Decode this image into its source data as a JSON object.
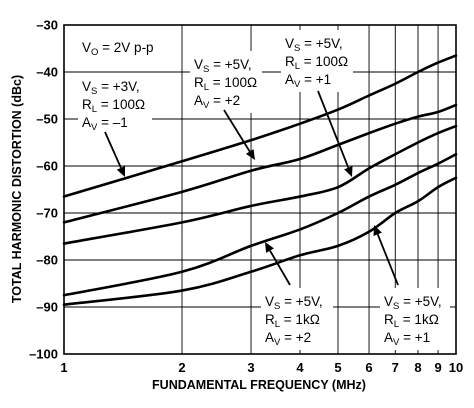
{
  "chart_data": {
    "type": "line",
    "xscale": "log",
    "xlim": [
      1,
      10
    ],
    "ylim": [
      -100,
      -30
    ],
    "grid": true,
    "xlabel": "FUNDAMENTAL FREQUENCY (MHz)",
    "ylabel": "TOTAL HARMONIC DISTORTION (dBc)",
    "x_ticks": [
      1,
      2,
      3,
      4,
      5,
      6,
      7,
      8,
      9,
      10
    ],
    "y_ticks": [
      -30,
      -40,
      -50,
      -60,
      -70,
      -80,
      -90,
      -100
    ],
    "x_tick_labels": [
      "1",
      "2",
      "3",
      "4",
      "5",
      "6",
      "7",
      "8",
      "9",
      "10"
    ],
    "y_tick_labels": [
      "–30",
      "–40",
      "–50",
      "–60",
      "–70",
      "–80",
      "–90",
      "–100"
    ],
    "series": [
      {
        "x": [
          1,
          2,
          3,
          4,
          5,
          6,
          7,
          8,
          9,
          10
        ],
        "values": [
          -66.5,
          -59.0,
          -54.5,
          -51.0,
          -48.0,
          -45.0,
          -42.5,
          -40.0,
          -38.0,
          -36.5
        ]
      },
      {
        "x": [
          1,
          2,
          3,
          4,
          5,
          6,
          7,
          8,
          9,
          10
        ],
        "values": [
          -72.0,
          -65.5,
          -61.0,
          -58.5,
          -55.5,
          -53.0,
          -51.0,
          -49.5,
          -48.5,
          -47.0
        ]
      },
      {
        "x": [
          1,
          2,
          3,
          4,
          5,
          6,
          7,
          8,
          9,
          10
        ],
        "values": [
          -76.5,
          -72.0,
          -68.5,
          -66.5,
          -64.5,
          -60.5,
          -57.5,
          -55.0,
          -53.0,
          -51.5
        ]
      },
      {
        "x": [
          1,
          2,
          3,
          4,
          5,
          6,
          7,
          8,
          9,
          10
        ],
        "values": [
          -87.5,
          -82.5,
          -77.0,
          -73.5,
          -70.0,
          -66.5,
          -64.0,
          -61.5,
          -59.5,
          -57.5
        ]
      },
      {
        "x": [
          1,
          2,
          3,
          4,
          5,
          6,
          7,
          8,
          9,
          10
        ],
        "values": [
          -89.5,
          -86.5,
          -82.5,
          -79.0,
          -77.0,
          -74.0,
          -70.0,
          -67.5,
          -64.5,
          -62.5
        ]
      }
    ],
    "annotations": [
      {
        "lines": [
          [
            "V",
            "O",
            " = 2V p-p"
          ]
        ]
      },
      {
        "lines": [
          [
            "V",
            "S",
            " = +3V,"
          ],
          [
            "R",
            "L",
            " = 100Ω"
          ],
          [
            "A",
            "V",
            " = –1"
          ]
        ]
      },
      {
        "lines": [
          [
            "V",
            "S",
            " = +5V,"
          ],
          [
            "R",
            "L",
            " = 100Ω"
          ],
          [
            "A",
            "V",
            " = +2"
          ]
        ]
      },
      {
        "lines": [
          [
            "V",
            "S",
            " = +5V,"
          ],
          [
            "R",
            "L",
            " = 100Ω"
          ],
          [
            "A",
            "V",
            " = +1"
          ]
        ]
      },
      {
        "lines": [
          [
            "V",
            "S",
            " = +5V,"
          ],
          [
            "R",
            "L",
            " = 1kΩ"
          ],
          [
            "A",
            "V",
            " = +2"
          ]
        ]
      },
      {
        "lines": [
          [
            "V",
            "S",
            " = +5V,"
          ],
          [
            "R",
            "L",
            " = 1kΩ"
          ],
          [
            "A",
            "V",
            " = +1"
          ]
        ]
      }
    ]
  }
}
